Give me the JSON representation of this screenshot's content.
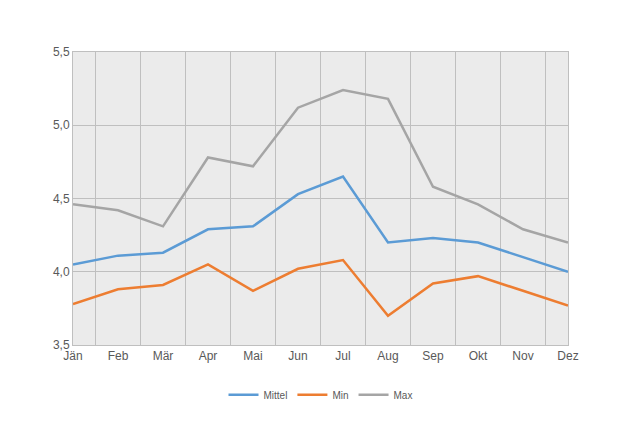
{
  "chart_data": {
    "type": "line",
    "categories": [
      "Jän",
      "Feb",
      "Mär",
      "Apr",
      "Mai",
      "Jun",
      "Jul",
      "Aug",
      "Sep",
      "Okt",
      "Nov",
      "Dez"
    ],
    "series": [
      {
        "name": "Mittel",
        "color": "#5b9bd5",
        "values": [
          4.05,
          4.11,
          4.13,
          4.29,
          4.31,
          4.53,
          4.65,
          4.2,
          4.23,
          4.2,
          4.1,
          4.0
        ]
      },
      {
        "name": "Min",
        "color": "#ed7d31",
        "values": [
          3.78,
          3.88,
          3.91,
          4.05,
          3.87,
          4.02,
          4.08,
          3.7,
          3.92,
          3.97,
          3.87,
          3.77
        ]
      },
      {
        "name": "Max",
        "color": "#a5a5a5",
        "values": [
          4.46,
          4.42,
          4.31,
          4.78,
          4.72,
          5.12,
          5.24,
          5.18,
          4.58,
          4.46,
          4.29,
          4.2
        ]
      }
    ],
    "ylim": [
      3.5,
      5.5
    ],
    "yticks": [
      {
        "value": 3.5,
        "label": "3,5"
      },
      {
        "value": 4.0,
        "label": "4,0"
      },
      {
        "value": 4.5,
        "label": "4,5"
      },
      {
        "value": 5.0,
        "label": "5,0"
      },
      {
        "value": 5.5,
        "label": "5,5"
      }
    ],
    "grid": true,
    "legend": "bottom"
  }
}
